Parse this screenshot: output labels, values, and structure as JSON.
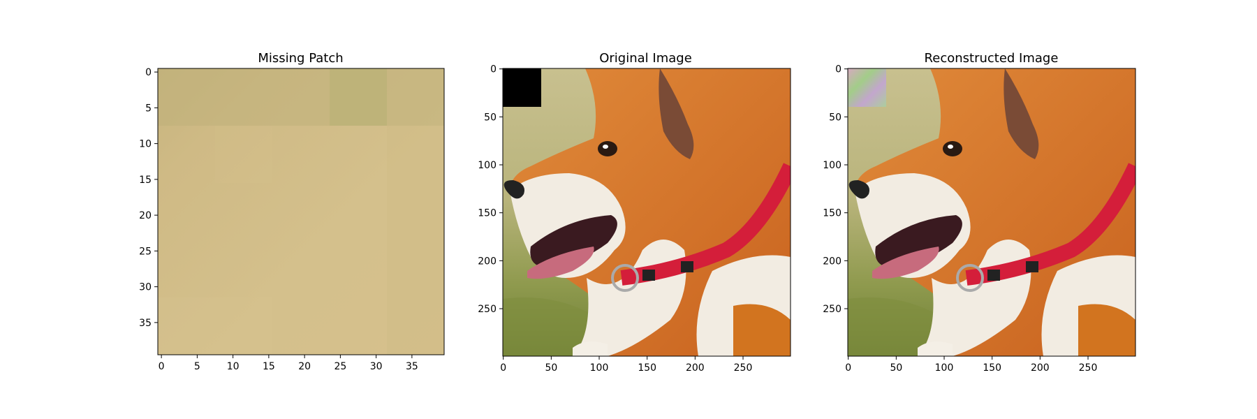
{
  "figure": {
    "panels": [
      {
        "title": "Missing Patch",
        "kind": "patch",
        "xticks": [
          0,
          5,
          10,
          15,
          20,
          25,
          30,
          35
        ],
        "yticks": [
          0,
          5,
          10,
          15,
          20,
          25,
          30,
          35
        ],
        "size": 40
      },
      {
        "title": "Original Image",
        "kind": "dog-masked",
        "xticks": [
          0,
          50,
          100,
          150,
          200,
          250
        ],
        "yticks": [
          0,
          50,
          100,
          150,
          200,
          250
        ],
        "size": 300
      },
      {
        "title": "Reconstructed Image",
        "kind": "dog-recon",
        "xticks": [
          0,
          50,
          100,
          150,
          200,
          250
        ],
        "yticks": [
          0,
          50,
          100,
          150,
          200,
          250
        ],
        "size": 300
      }
    ]
  },
  "chart_data": [
    {
      "type": "heatmap",
      "title": "Missing Patch",
      "xlim": [
        -0.5,
        39.5
      ],
      "ylim": [
        39.5,
        -0.5
      ],
      "xticks": [
        0,
        5,
        10,
        15,
        20,
        25,
        30,
        35
      ],
      "yticks": [
        0,
        5,
        10,
        15,
        20,
        25,
        30,
        35
      ],
      "description_colors": {
        "base": "#d2bd8a",
        "top": "#c2b27a"
      }
    },
    {
      "type": "heatmap",
      "title": "Original Image",
      "xlim": [
        -0.5,
        299.5
      ],
      "ylim": [
        299.5,
        -0.5
      ],
      "xticks": [
        0,
        50,
        100,
        150,
        200,
        250
      ],
      "yticks": [
        0,
        50,
        100,
        150,
        200,
        250
      ],
      "masked_region": {
        "x": [
          0,
          40
        ],
        "y": [
          0,
          40
        ],
        "color": "#000000"
      }
    },
    {
      "type": "heatmap",
      "title": "Reconstructed Image",
      "xlim": [
        -0.5,
        299.5
      ],
      "ylim": [
        299.5,
        -0.5
      ],
      "xticks": [
        0,
        50,
        100,
        150,
        200,
        250
      ],
      "yticks": [
        0,
        50,
        100,
        150,
        200,
        250
      ],
      "reconstructed_region": {
        "x": [
          0,
          40
        ],
        "y": [
          0,
          40
        ]
      }
    }
  ]
}
